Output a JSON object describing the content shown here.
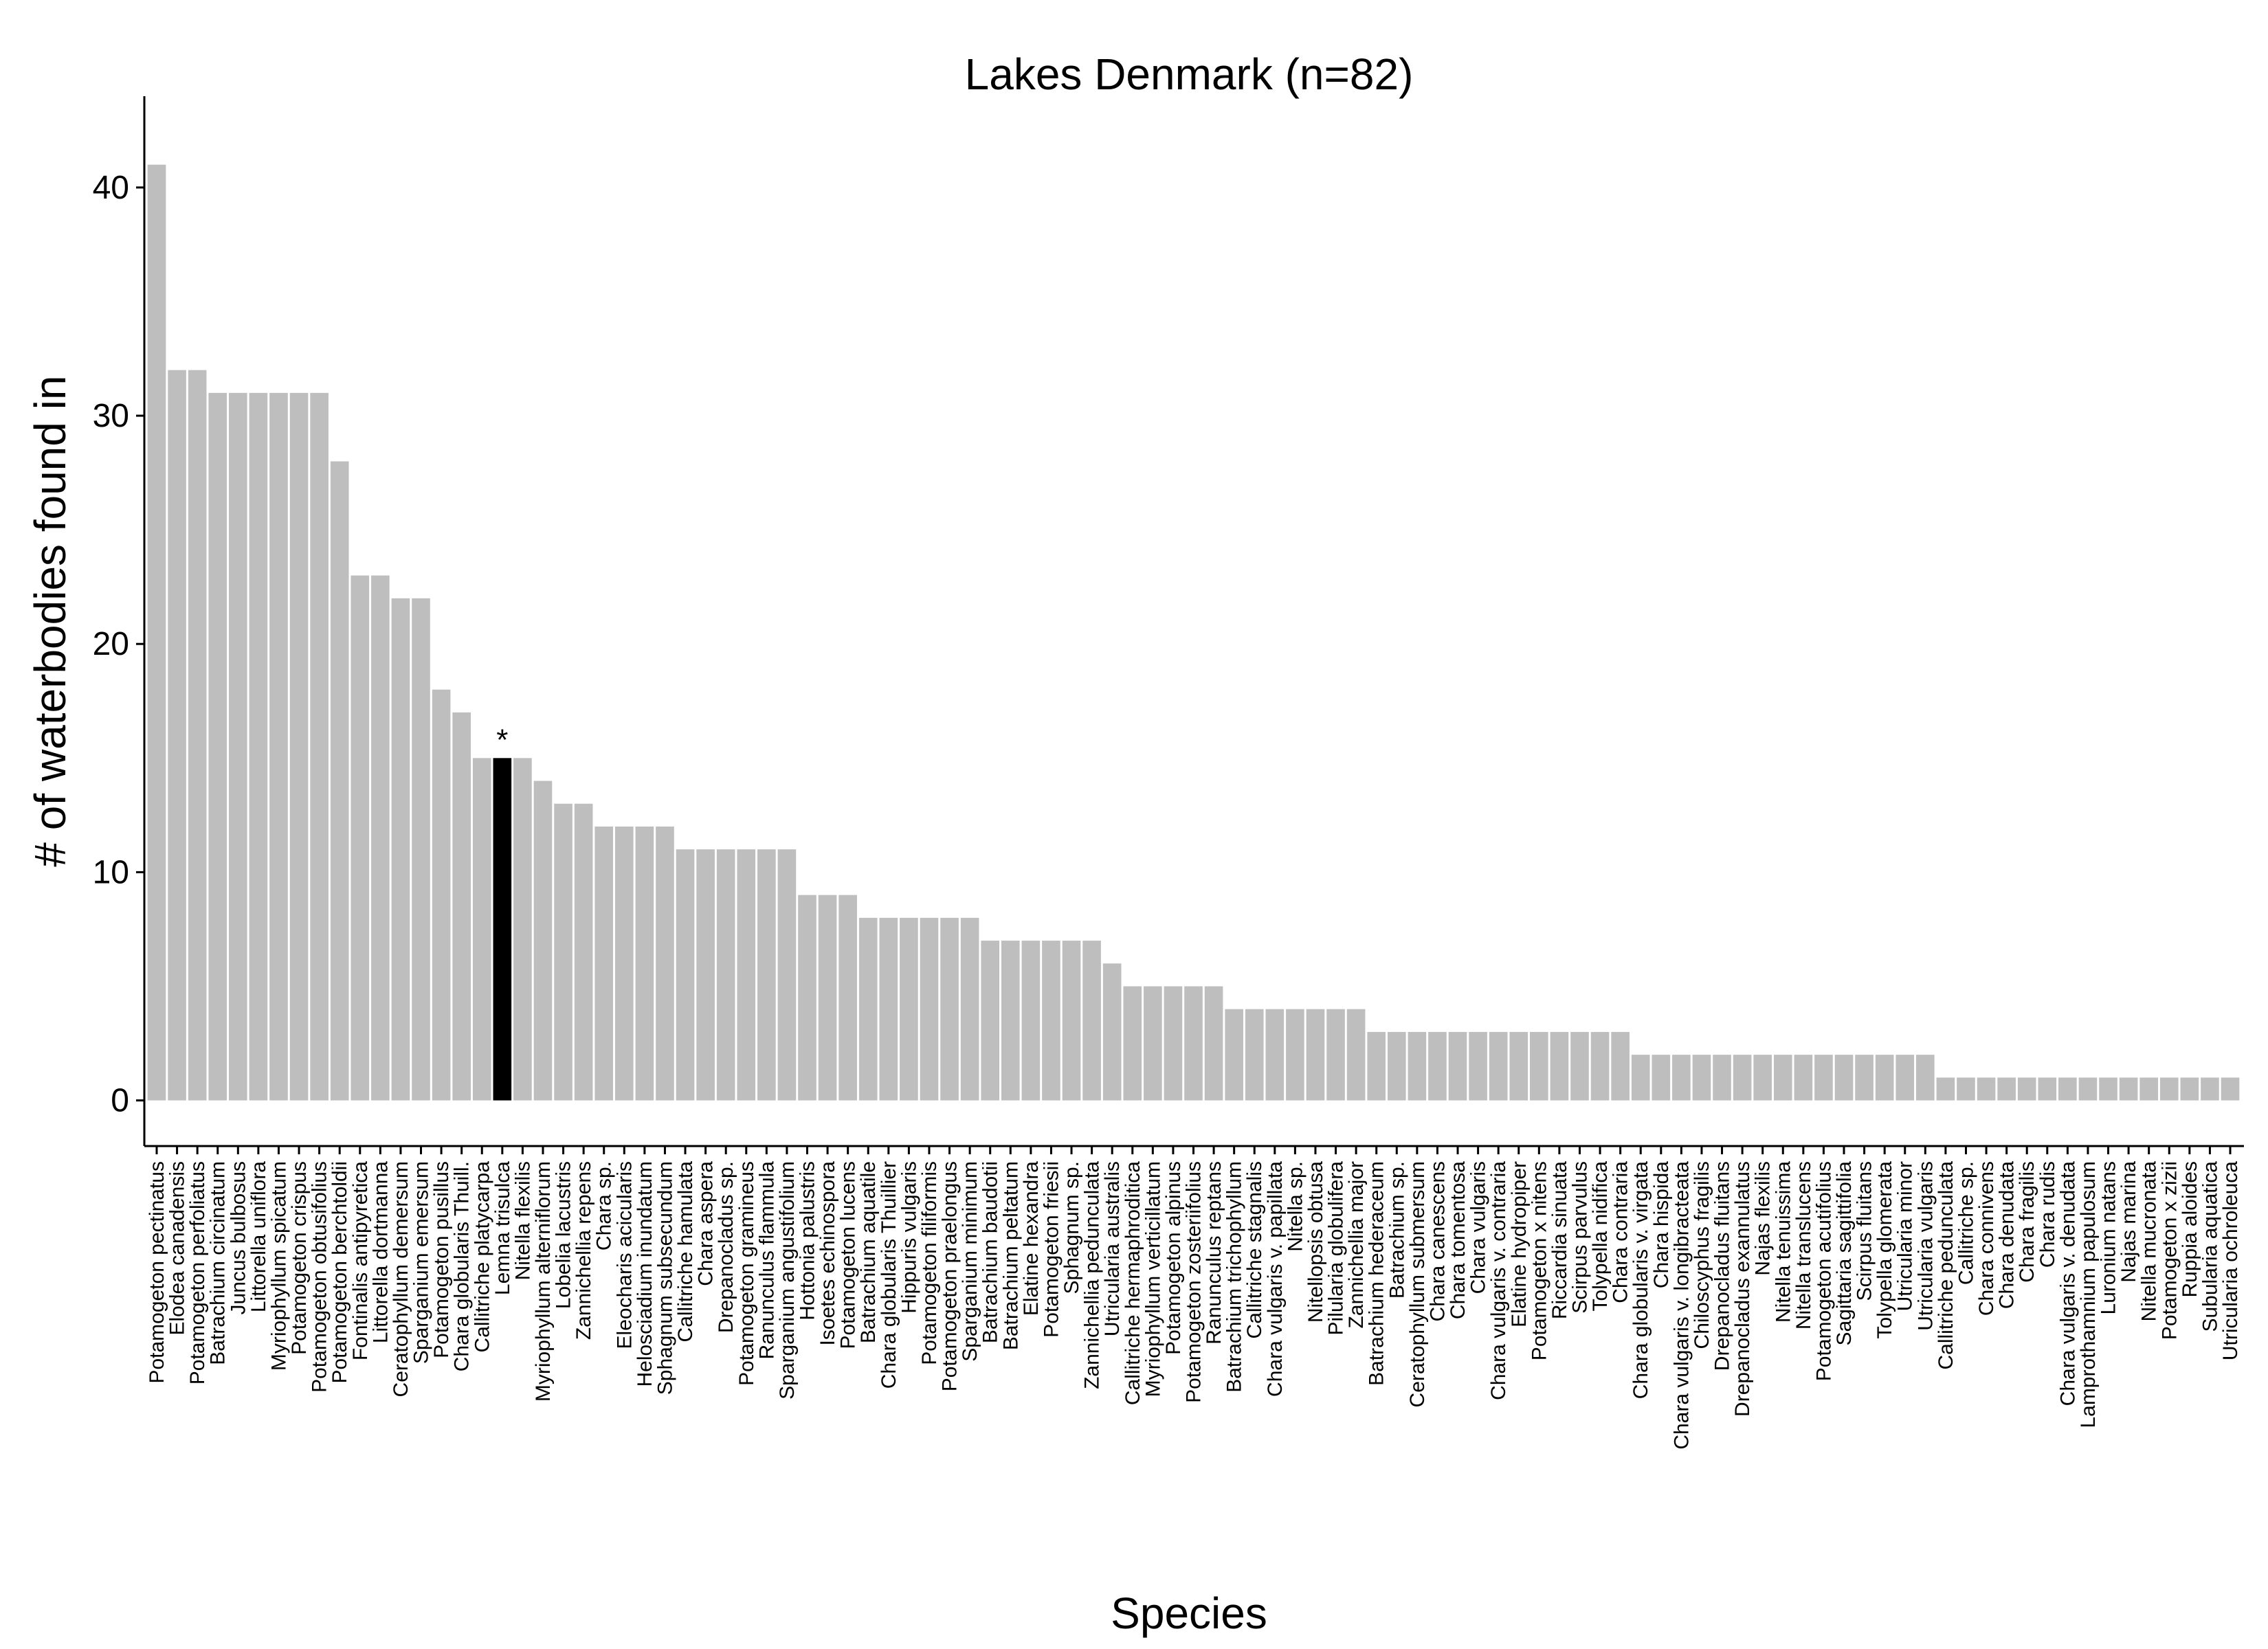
{
  "chart_data": {
    "type": "bar",
    "title": "Lakes Denmark (n=82)",
    "xlabel": "Species",
    "ylabel": "# of waterbodies found in",
    "ylim": [
      -2,
      44
    ],
    "yticks": [
      0,
      10,
      20,
      30,
      40
    ],
    "grid": false,
    "legend": "none",
    "colors": {
      "default": "#bebebe",
      "highlight": "#000000",
      "axis": "#000000"
    },
    "highlight_index": 17,
    "annotation": {
      "text": "*",
      "category_index": 17
    },
    "categories": [
      "Potamogeton pectinatus",
      "Elodea canadensis",
      "Potamogeton perfoliatus",
      "Batrachium circinatum",
      "Juncus bulbosus",
      "Littorella uniflora",
      "Myriophyllum spicatum",
      "Potamogeton crispus",
      "Potamogeton obtusifolius",
      "Potamogeton berchtoldii",
      "Fontinalis antipyretica",
      "Littorella dortmanna",
      "Ceratophyllum demersum",
      "Sparganium emersum",
      "Potamogeton pusillus",
      "Chara globularis Thuill.",
      "Callitriche platycarpa",
      "Lemna trisulca",
      "Nitella flexilis",
      "Myriophyllum alterniflorum",
      "Lobelia lacustris",
      "Zannichellia repens",
      "Chara sp.",
      "Eleocharis acicularis",
      "Helosciadium inundatum",
      "Sphagnum subsecundum",
      "Callitriche hamulata",
      "Chara aspera",
      "Drepanocladus sp.",
      "Potamogeton gramineus",
      "Ranunculus flammula",
      "Sparganium angustifolium",
      "Hottonia palustris",
      "Isoetes echinospora",
      "Potamogeton lucens",
      "Batrachium aquatile",
      "Chara globularis Thuillier",
      "Hippuris vulgaris",
      "Potamogeton filiformis",
      "Potamogeton praelongus",
      "Sparganium minimum",
      "Batrachium baudotii",
      "Batrachium peltatum",
      "Elatine hexandra",
      "Potamogeton friesii",
      "Sphagnum sp.",
      "Zannichellia pedunculata",
      "Utricularia australis",
      "Callitriche hermaphroditica",
      "Myriophyllum verticillatum",
      "Potamogeton alpinus",
      "Potamogeton zosteriifolius",
      "Ranunculus reptans",
      "Batrachium trichophyllum",
      "Callitriche stagnalis",
      "Chara vulgaris v. papillata",
      "Nitella sp.",
      "Nitellopsis obtusa",
      "Pilularia globulifera",
      "Zannichellia major",
      "Batrachium hederaceum",
      "Batrachium sp.",
      "Ceratophyllum submersum",
      "Chara canescens",
      "Chara tomentosa",
      "Chara vulgaris",
      "Chara vulgaris v. contraria",
      "Elatine hydropiper",
      "Potamogeton x nitens",
      "Riccardia sinuata",
      "Scirpus parvulus",
      "Tolypella nidifica",
      "Chara contraria",
      "Chara globularis v. virgata",
      "Chara hispida",
      "Chara vulgaris v. longibracteata",
      "Chiloscyphus fragilis",
      "Drepanocladus fluitans",
      "Drepanocladus exannulatus",
      "Najas flexilis",
      "Nitella tenuissima",
      "Nitella translucens",
      "Potamogeton acutifolius",
      "Sagittaria sagittifolia",
      "Scirpus fluitans",
      "Tolypella glomerata",
      "Utricularia minor",
      "Utricularia vulgaris",
      "Callitriche pedunculata",
      "Callitriche sp.",
      "Chara connivens",
      "Chara denudata",
      "Chara fragilis",
      "Chara rudis",
      "Chara vulgaris v. denudata",
      "Lamprothamnium papulosum",
      "Luronium natans",
      "Najas marina",
      "Nitella mucronata",
      "Potamogeton x zizii",
      "Ruppia aloides",
      "Subularia aquatica",
      "Utricularia ochroleuca"
    ],
    "values": [
      41,
      32,
      32,
      31,
      31,
      31,
      31,
      31,
      31,
      28,
      23,
      23,
      22,
      22,
      18,
      17,
      15,
      15,
      15,
      14,
      13,
      13,
      12,
      12,
      12,
      12,
      11,
      11,
      11,
      11,
      11,
      11,
      9,
      9,
      9,
      8,
      8,
      8,
      8,
      8,
      8,
      7,
      7,
      7,
      7,
      7,
      7,
      6,
      5,
      5,
      5,
      5,
      5,
      4,
      4,
      4,
      4,
      4,
      4,
      4,
      3,
      3,
      3,
      3,
      3,
      3,
      3,
      3,
      3,
      3,
      3,
      3,
      3,
      2,
      2,
      2,
      2,
      2,
      2,
      2,
      2,
      2,
      2,
      2,
      2,
      2,
      2,
      2,
      1,
      1,
      1,
      1,
      1,
      1,
      1,
      1,
      1,
      1,
      1,
      1,
      1,
      1,
      1
    ]
  }
}
